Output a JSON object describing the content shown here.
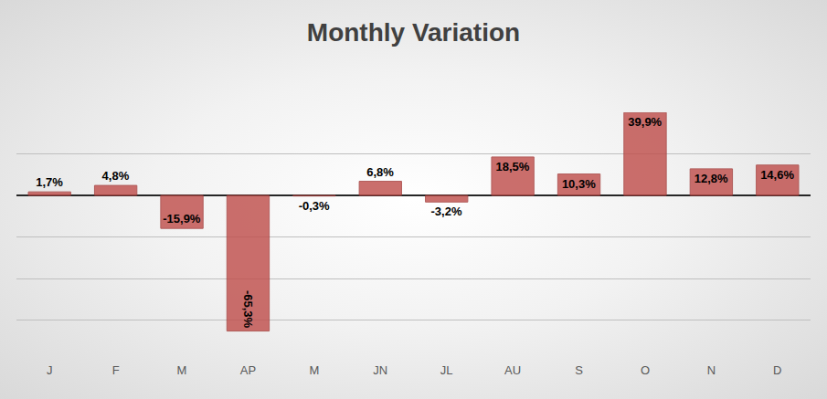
{
  "chart_data": {
    "type": "bar",
    "title": "Monthly Variation",
    "categories": [
      "J",
      "F",
      "M",
      "AP",
      "M",
      "JN",
      "JL",
      "AU",
      "S",
      "O",
      "N",
      "D"
    ],
    "values": [
      1.7,
      4.8,
      -15.9,
      -65.3,
      -0.3,
      6.8,
      -3.2,
      18.5,
      10.3,
      39.9,
      12.8,
      14.6
    ],
    "value_labels": [
      "1,7%",
      "4,8%",
      "-15,9%",
      "-65,3%",
      "-0,3%",
      "6,8%",
      "-3,2%",
      "18,5%",
      "10,3%",
      "39,9%",
      "12,8%",
      "14,6%"
    ],
    "color": "#c0504d",
    "ylim": [
      -80,
      40
    ],
    "yticks": [
      -80,
      -60,
      -40,
      -20,
      0,
      20,
      40
    ],
    "grid": true,
    "data_labels": true,
    "tick_labels": "x"
  }
}
